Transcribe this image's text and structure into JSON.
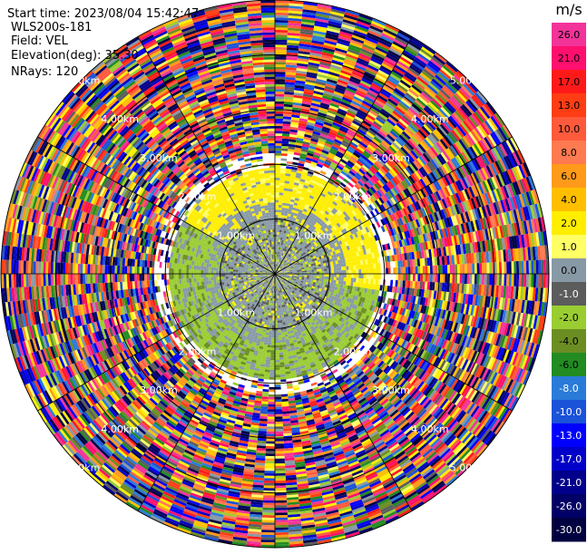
{
  "header": {
    "start_time": "Start time: 2023/08/04 15:42:47",
    "instrument": "WLS200s-181",
    "field": "Field: VEL",
    "elevation": "Elevation(deg): 35.30",
    "nrays": "NRays: 120"
  },
  "colorbar": {
    "unit": "m/s",
    "labels": [
      "26.0",
      "21.0",
      "17.0",
      "13.0",
      "10.0",
      "8.0",
      "6.0",
      "4.0",
      "2.0",
      "1.0",
      "0.0",
      "-1.0",
      "-2.0",
      "-4.0",
      "-6.0",
      "-8.0",
      "-10.0",
      "-13.0",
      "-17.0",
      "-21.0",
      "-26.0",
      "-30.0"
    ],
    "colors": [
      "#f23399",
      "#ff0f6e",
      "#ff1a1a",
      "#ff3d14",
      "#ff5a3c",
      "#ff7a50",
      "#ff9a1a",
      "#ffbf00",
      "#ffee00",
      "#ffff66",
      "#8899a6",
      "#5c5c5c",
      "#9acd32",
      "#6b8e23",
      "#228b22",
      "#2a7bd8",
      "#1a52d8",
      "#0000ff",
      "#0000c8",
      "#00008b",
      "#000066",
      "#000040"
    ]
  },
  "range_labels": {
    "r1": "1.00km",
    "r2": "2.00km",
    "r3": "3.00km",
    "r4": "4.00km",
    "r5": "5.00km"
  },
  "chart_data": {
    "type": "heatmap",
    "projection": "polar PPI",
    "field": "VEL",
    "units": "m/s",
    "nrays": 120,
    "elevation_deg": 35.3,
    "range_rings_km": [
      1,
      2,
      3,
      4,
      5
    ],
    "max_range_km": 5.0,
    "color_scale_min": -30.0,
    "color_scale_max": 26.0,
    "regions": [
      {
        "range_km": [
          0,
          1.0
        ],
        "description": "near-zero velocity, mixed grey with green and yellow patches",
        "dominant_values": [
          0.0,
          -1.0,
          -2.0,
          2.0
        ]
      },
      {
        "range_km": [
          1.0,
          1.9
        ],
        "direction": "north/east half",
        "dominant_values": [
          2.0,
          1.0
        ]
      },
      {
        "range_km": [
          1.0,
          1.9
        ],
        "direction": "south/west half",
        "dominant_values": [
          -2.0,
          -4.0
        ]
      },
      {
        "range_km": [
          1.9,
          5.0
        ],
        "description": "noise-dominated, all colors scattered",
        "dominant_values": "mixed"
      }
    ]
  }
}
